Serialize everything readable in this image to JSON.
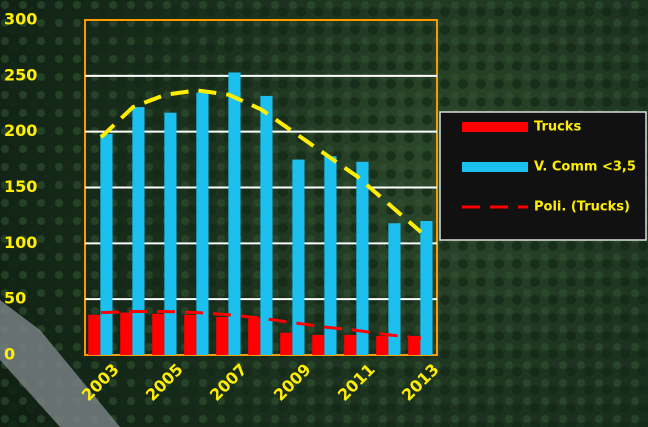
{
  "chart_data": {
    "type": "bar",
    "categories": [
      "2003",
      null,
      "2005",
      null,
      "2007",
      null,
      "2009",
      null,
      "2011",
      null,
      "2013"
    ],
    "series": [
      {
        "name": "Trucks",
        "color": "#ff0000",
        "values": [
          36,
          38,
          37,
          36,
          34,
          33,
          20,
          18,
          18,
          17,
          17
        ]
      },
      {
        "name": "V. Comm <3,5",
        "color": "#1cc0f0",
        "values": [
          198,
          222,
          217,
          235,
          253,
          232,
          175,
          178,
          173,
          118,
          120
        ]
      }
    ],
    "trendlines": [
      {
        "color": "#ffee00",
        "values": [
          195,
          222,
          233,
          237,
          233,
          220,
          200,
          180,
          160,
          135,
          110
        ]
      },
      {
        "name": "Poli. (Trucks)",
        "color": "#ff0000",
        "values": [
          38,
          39,
          39,
          38,
          36,
          33,
          29,
          25,
          22,
          18,
          15
        ]
      }
    ],
    "ylim": [
      0,
      300
    ],
    "yticks": [
      0,
      50,
      100,
      150,
      200,
      250,
      300
    ],
    "grid": true
  }
}
